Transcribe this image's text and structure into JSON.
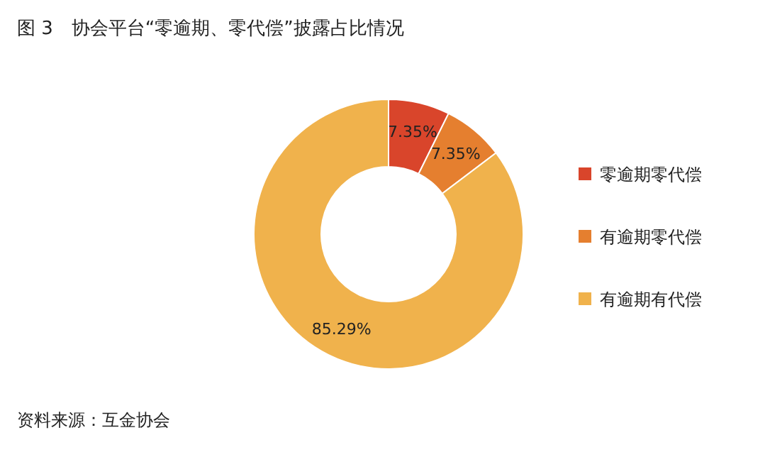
{
  "chart_data": {
    "type": "donut",
    "title": "图 3　协会平台“零逾期、零代偿”披露占比情况",
    "categories": [
      "零逾期零代偿",
      "有逾期零代偿",
      "有逾期有代偿"
    ],
    "values": [
      7.35,
      7.35,
      85.29
    ],
    "colors": [
      "#d9452b",
      "#e57f2f",
      "#f0b24c"
    ],
    "value_labels": [
      "7.35%",
      "7.35%",
      "85.29%"
    ],
    "legend": "right",
    "annotations": [
      "资料来源：互金协会"
    ]
  }
}
